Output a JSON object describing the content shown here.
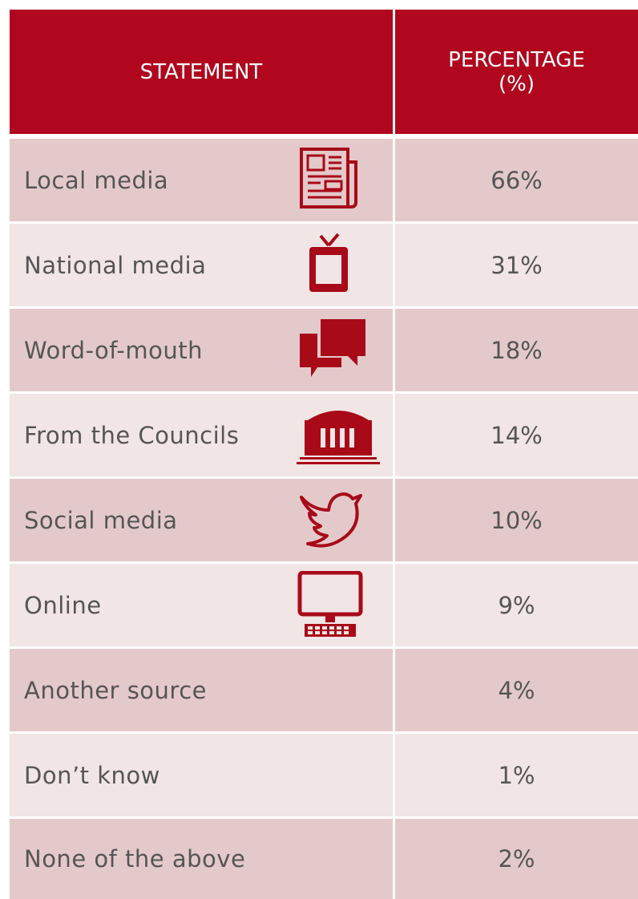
{
  "header": {
    "statement": "STATEMENT",
    "percentage": "PERCENTAGE",
    "percentage_unit": "(%)"
  },
  "rows": [
    {
      "statement": "Local media",
      "percentage": "66%"
    },
    {
      "statement": "National media",
      "percentage": "31%"
    },
    {
      "statement": "Word-of-mouth",
      "percentage": "18%"
    },
    {
      "statement": "From the Councils",
      "percentage": "14%"
    },
    {
      "statement": "Social media",
      "percentage": "10%"
    },
    {
      "statement": "Online",
      "percentage": "9%"
    },
    {
      "statement": "Another source",
      "percentage": "4%"
    },
    {
      "statement": "Don’t know",
      "percentage": "1%"
    },
    {
      "statement": "None of the above",
      "percentage": "2%"
    }
  ]
}
